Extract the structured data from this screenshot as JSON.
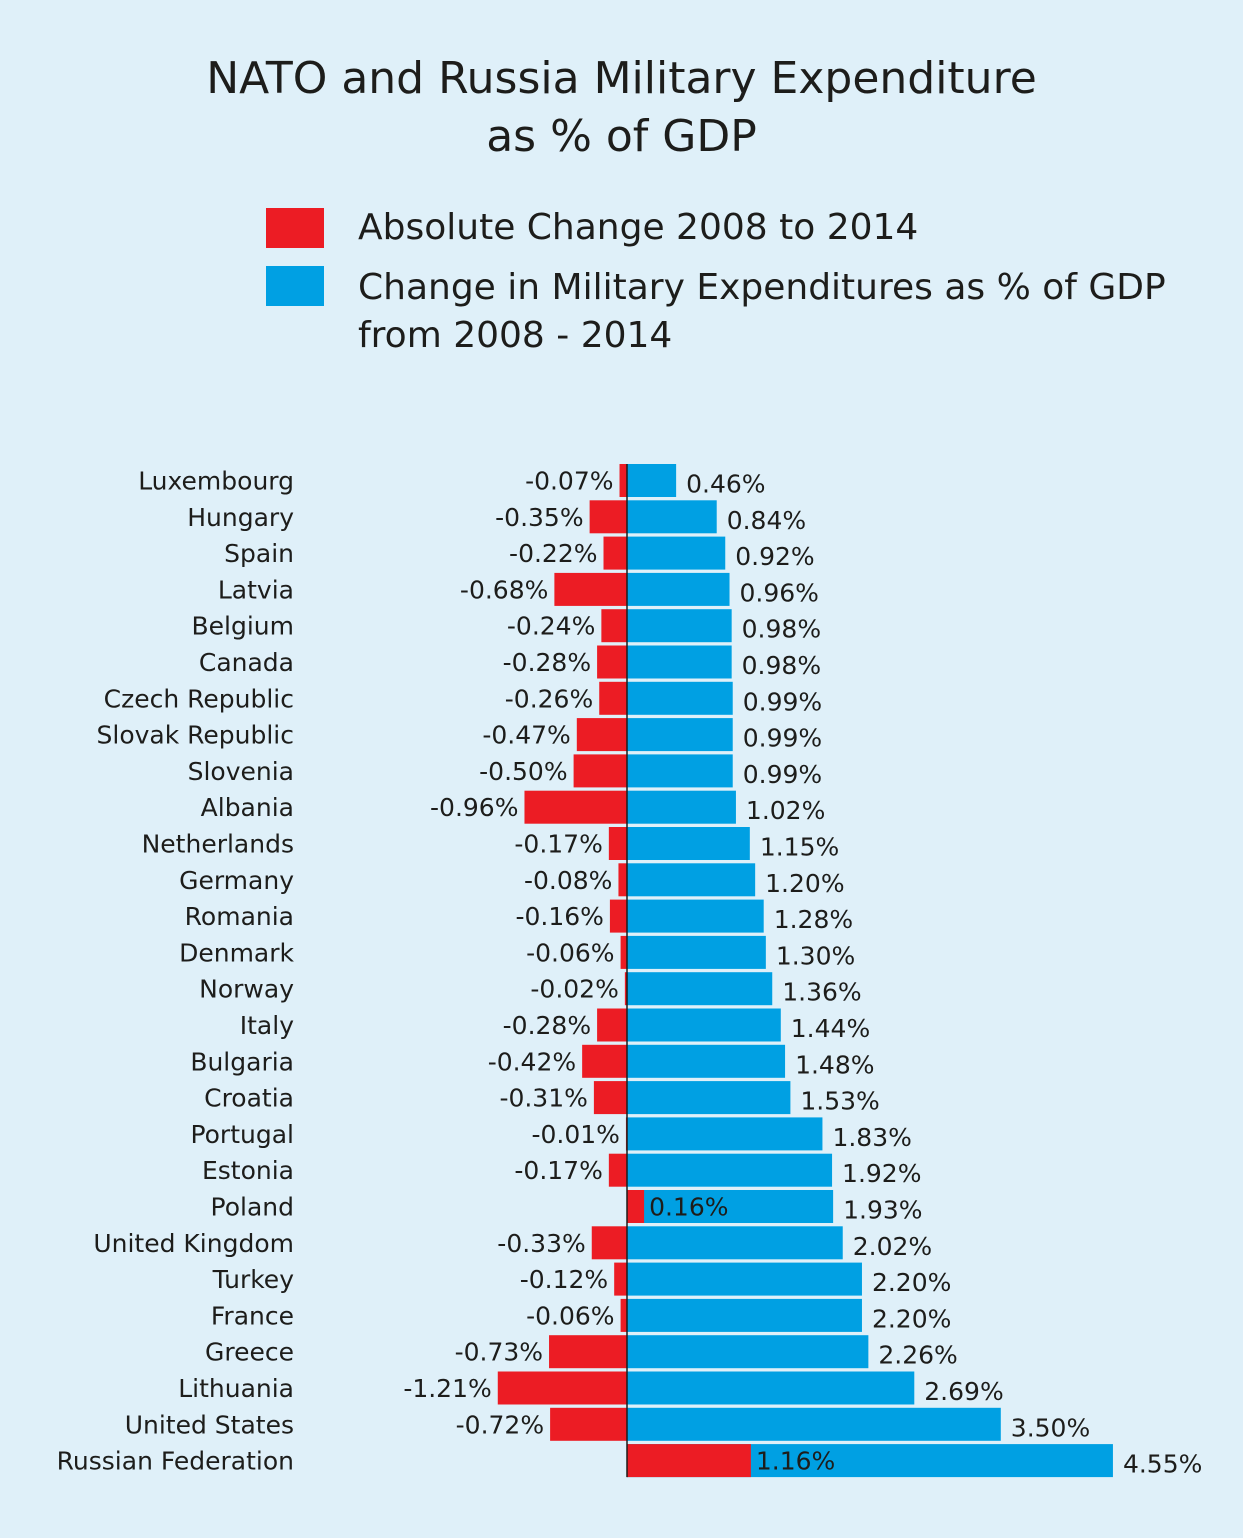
{
  "chart_data": {
    "type": "bar",
    "title_line1": "NATO and Russia Military Expenditure",
    "title_line2": "as % of GDP",
    "legend": [
      {
        "label": "Absolute Change 2008 to 2014",
        "color": "#ec1c24"
      },
      {
        "label_line1": "Change in Military Expenditures as % of GDP",
        "label_line2": "from 2008 - 2014",
        "color": "#00a0e3"
      }
    ],
    "categories": [
      "Luxembourg",
      "Hungary",
      "Spain",
      "Latvia",
      "Belgium",
      "Canada",
      "Czech Republic",
      "Slovak Republic",
      "Slovenia",
      "Albania",
      "Netherlands",
      "Germany",
      "Romania",
      "Denmark",
      "Norway",
      "Italy",
      "Bulgaria",
      "Croatia",
      "Portugal",
      "Estonia",
      "Poland",
      "United Kingdom",
      "Turkey",
      "France",
      "Greece",
      "Lithuania",
      "United States",
      "Russian Federation"
    ],
    "series": [
      {
        "name": "Absolute Change 2008 to 2014",
        "color": "#ec1c24",
        "values": [
          -0.07,
          -0.35,
          -0.22,
          -0.68,
          -0.24,
          -0.28,
          -0.26,
          -0.47,
          -0.5,
          -0.96,
          -0.17,
          -0.08,
          -0.16,
          -0.06,
          -0.02,
          -0.28,
          -0.42,
          -0.31,
          -0.01,
          -0.17,
          0.16,
          -0.33,
          -0.12,
          -0.06,
          -0.73,
          -1.21,
          -0.72,
          1.16
        ],
        "labels": [
          "-0.07%",
          "-0.35%",
          "-0.22%",
          "-0.68%",
          "-0.24%",
          "-0.28%",
          "-0.26%",
          "-0.47%",
          "-0.50%",
          "-0.96%",
          "-0.17%",
          "-0.08%",
          "-0.16%",
          "-0.06%",
          "-0.02%",
          "-0.28%",
          "-0.42%",
          "-0.31%",
          "-0.01%",
          "-0.17%",
          "0.16%",
          "-0.33%",
          "-0.12%",
          "-0.06%",
          "-0.73%",
          "-1.21%",
          "-0.72%",
          "1.16%"
        ]
      },
      {
        "name": "Change in Military Expenditures as % of GDP from 2008 - 2014",
        "color": "#00a0e3",
        "values": [
          0.46,
          0.84,
          0.92,
          0.96,
          0.98,
          0.98,
          0.99,
          0.99,
          0.99,
          1.02,
          1.15,
          1.2,
          1.28,
          1.3,
          1.36,
          1.44,
          1.48,
          1.53,
          1.83,
          1.92,
          1.93,
          2.02,
          2.2,
          2.2,
          2.26,
          2.69,
          3.5,
          4.55
        ],
        "labels": [
          "0.46%",
          "0.84%",
          "0.92%",
          "0.96%",
          "0.98%",
          "0.98%",
          "0.99%",
          "0.99%",
          "0.99%",
          "1.02%",
          "1.15%",
          "1.20%",
          "1.28%",
          "1.30%",
          "1.36%",
          "1.44%",
          "1.48%",
          "1.53%",
          "1.83%",
          "1.92%",
          "1.93%",
          "2.02%",
          "2.20%",
          "2.20%",
          "2.26%",
          "2.69%",
          "3.50%",
          "4.55%"
        ]
      }
    ]
  }
}
